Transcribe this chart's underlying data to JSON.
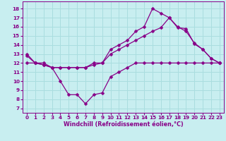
{
  "xlabel": "Windchill (Refroidissement éolien,°C)",
  "bg_color": "#c8eef0",
  "grid_color": "#aadddf",
  "line_color": "#880088",
  "x_ticks": [
    0,
    1,
    2,
    3,
    4,
    5,
    6,
    7,
    8,
    9,
    10,
    11,
    12,
    13,
    14,
    15,
    16,
    17,
    18,
    19,
    20,
    21,
    22,
    23
  ],
  "y_ticks": [
    7,
    8,
    9,
    10,
    11,
    12,
    13,
    14,
    15,
    16,
    17,
    18
  ],
  "ylim": [
    6.5,
    18.8
  ],
  "xlim": [
    -0.5,
    23.5
  ],
  "series": [
    {
      "x": [
        0,
        1,
        2,
        3,
        4,
        5,
        6,
        7,
        8,
        9,
        10,
        11,
        12,
        13,
        14,
        15,
        16,
        17,
        18,
        19,
        20,
        21,
        22,
        23
      ],
      "y": [
        13,
        12,
        12,
        11.5,
        10,
        8.5,
        8.5,
        7.5,
        8.5,
        8.7,
        10.5,
        11,
        11.5,
        12,
        12,
        12,
        12,
        12,
        12,
        12,
        12,
        12,
        12,
        12
      ]
    },
    {
      "x": [
        0,
        1,
        2,
        3,
        4,
        5,
        6,
        7,
        8,
        9,
        10,
        11,
        12,
        13,
        14,
        15,
        16,
        17,
        18,
        19,
        20,
        21,
        22,
        23
      ],
      "y": [
        12,
        12,
        11.8,
        11.5,
        11.5,
        11.5,
        11.5,
        11.5,
        11.8,
        12,
        13,
        13.5,
        14,
        14.5,
        15,
        15.5,
        15.9,
        17,
        15.9,
        15.8,
        14.1,
        13.5,
        12.5,
        12
      ]
    },
    {
      "x": [
        0,
        1,
        2,
        3,
        4,
        5,
        6,
        7,
        8,
        9,
        10,
        11,
        12,
        13,
        14,
        15,
        16,
        17,
        18,
        19,
        20,
        21,
        22,
        23
      ],
      "y": [
        12.8,
        12,
        11.8,
        11.5,
        11.5,
        11.5,
        11.5,
        11.5,
        12,
        12,
        13.5,
        14,
        14.5,
        15.5,
        16,
        18,
        17.5,
        17,
        16,
        15.5,
        14.2,
        13.5,
        12.5,
        12
      ]
    }
  ]
}
